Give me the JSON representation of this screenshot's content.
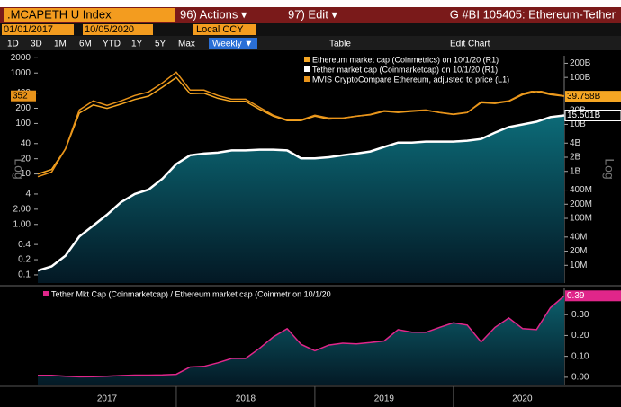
{
  "header": {
    "ticker": ".MCAPETH U Index",
    "actions": "96) Actions ▾",
    "edit": "97) Edit ▾",
    "title": "G #BI 105405: Ethereum-Tether"
  },
  "range": {
    "start": "01/01/2017",
    "end": "10/05/2020",
    "currency": "Local CCY"
  },
  "toolbar": {
    "periods": [
      "1D",
      "3D",
      "1M",
      "6M",
      "YTD",
      "1Y",
      "5Y",
      "Max"
    ],
    "frequency": "Weekly ▼",
    "table": "Table",
    "edit_chart": "Edit Chart"
  },
  "chart_data": [
    {
      "type": "line",
      "ylabel": "Log",
      "y2label": "Log",
      "log": true,
      "y2log": true,
      "x": [
        2017.0,
        2017.1,
        2017.2,
        2017.3,
        2017.4,
        2017.5,
        2017.6,
        2017.7,
        2017.8,
        2017.9,
        2018.0,
        2018.1,
        2018.2,
        2018.3,
        2018.4,
        2018.5,
        2018.6,
        2018.7,
        2018.8,
        2018.9,
        2019.0,
        2019.1,
        2019.2,
        2019.3,
        2019.4,
        2019.5,
        2019.6,
        2019.7,
        2019.8,
        2019.9,
        2020.0,
        2020.1,
        2020.2,
        2020.3,
        2020.4,
        2020.5,
        2020.6,
        2020.7,
        2020.8
      ],
      "xlim": [
        2017,
        2020.8
      ],
      "ylim": [
        0.069,
        2200
      ],
      "yticks": [
        2000,
        1000,
        400,
        200,
        100,
        40,
        20,
        10,
        4,
        {
          "value": 2,
          "label": "2.00"
        },
        {
          "value": 1,
          "label": "1.00"
        },
        0.4,
        0.2,
        0.1
      ],
      "y2lim": [
        4200000,
        290000000000
      ],
      "y2ticks": [
        {
          "value": 200000000000,
          "label": "200B"
        },
        {
          "value": 100000000000,
          "label": "100B"
        },
        {
          "value": 20000000000,
          "label": "20B"
        },
        {
          "value": 10000000000,
          "label": "10B"
        },
        {
          "value": 4000000000,
          "label": "4B"
        },
        {
          "value": 2000000000,
          "label": "2B"
        },
        {
          "value": 1000000000,
          "label": "1B"
        },
        {
          "value": 400000000,
          "label": "400M"
        },
        {
          "value": 200000000,
          "label": "200M"
        },
        {
          "value": 100000000,
          "label": "100M"
        },
        {
          "value": 40000000,
          "label": "40M"
        },
        {
          "value": 20000000,
          "label": "20M"
        },
        {
          "value": 10000000,
          "label": "10M"
        }
      ],
      "legend": "upper right",
      "series": [
        {
          "name": "Ethereum market cap (Coinmetrics) on 10/1/20 (R1)",
          "color": "#f5a623",
          "axis": "y2",
          "values": [
            880000000,
            1100000000,
            3000000000,
            17500000000,
            26000000000,
            22000000000,
            27000000000,
            34000000000,
            40000000000,
            62000000000,
            100000000000,
            45000000000,
            46000000000,
            36000000000,
            31000000000,
            31000000000,
            21000000000,
            15000000000,
            12000000000,
            12000000000,
            15000000000,
            13000000000,
            13500000000,
            15000000000,
            16000000000,
            19000000000,
            18000000000,
            19000000000,
            20000000000,
            18000000000,
            16500000000,
            18000000000,
            29000000000,
            28000000000,
            31000000000,
            43000000000,
            50000000000,
            43000000000,
            39758000000
          ],
          "value_labels": [
            null,
            null,
            null,
            null,
            null,
            null,
            null,
            null,
            null,
            null,
            null,
            null,
            null,
            null,
            null,
            null,
            null,
            null,
            null,
            null,
            null,
            null,
            null,
            null,
            null,
            null,
            null,
            null,
            null,
            null,
            null,
            null,
            null,
            null,
            null,
            null,
            null,
            null,
            "39.758B"
          ]
        },
        {
          "name": "Tether market cap (Coinmarketcap) on 10/1/20 (R1)",
          "color": "#ffffff",
          "axis": "y2",
          "area": true,
          "values": [
            7700000,
            9500000,
            16000000,
            41000000,
            70000000,
            120000000,
            220000000,
            330000000,
            410000000,
            700000000,
            1430000000,
            2200000000,
            2400000000,
            2500000000,
            2800000000,
            2800000000,
            2900000000,
            2900000000,
            2800000000,
            1900000000,
            1900000000,
            2000000000,
            2200000000,
            2400000000,
            2650000000,
            3300000000,
            4100000000,
            4100000000,
            4300000000,
            4300000000,
            4300000000,
            4500000000,
            4900000000,
            6700000000,
            8800000000,
            10000000000,
            11400000000,
            14300000000,
            15501000000
          ],
          "value_labels": [
            null,
            null,
            null,
            null,
            null,
            null,
            null,
            null,
            null,
            null,
            null,
            null,
            null,
            null,
            null,
            null,
            null,
            null,
            null,
            null,
            null,
            null,
            null,
            null,
            null,
            null,
            null,
            null,
            null,
            null,
            null,
            null,
            null,
            null,
            null,
            null,
            null,
            null,
            "15.501B"
          ]
        },
        {
          "name": "MVIS CryptoCompare Ethereum, adjusted to price (L1)",
          "color": "#e8931a",
          "axis": "y",
          "values": [
            8.8,
            10.9,
            31.6,
            185,
            280,
            228,
            280,
            358,
            422,
            637,
            1040,
            458,
            458,
            358,
            303,
            303,
            209,
            145,
            118,
            118,
            145,
            128,
            128,
            139,
            151,
            178,
            171,
            178,
            185,
            164,
            151,
            164,
            268,
            258,
            280,
            388,
            458,
            388,
            352
          ],
          "value_labels": [
            null,
            null,
            null,
            null,
            null,
            null,
            null,
            null,
            null,
            null,
            null,
            null,
            null,
            null,
            null,
            null,
            null,
            null,
            null,
            null,
            null,
            null,
            null,
            null,
            null,
            null,
            null,
            null,
            null,
            null,
            null,
            null,
            null,
            null,
            null,
            null,
            null,
            null,
            "352"
          ]
        }
      ]
    },
    {
      "type": "area",
      "yaxis_side": "right",
      "legend": "upper left",
      "x": [
        2017.0,
        2017.1,
        2017.2,
        2017.3,
        2017.4,
        2017.5,
        2017.6,
        2017.7,
        2017.8,
        2017.9,
        2018.0,
        2018.1,
        2018.2,
        2018.3,
        2018.4,
        2018.5,
        2018.6,
        2018.7,
        2018.8,
        2018.9,
        2019.0,
        2019.1,
        2019.2,
        2019.3,
        2019.4,
        2019.5,
        2019.6,
        2019.7,
        2019.8,
        2019.9,
        2020.0,
        2020.1,
        2020.2,
        2020.3,
        2020.4,
        2020.5,
        2020.6,
        2020.7,
        2020.8
      ],
      "xlim": [
        2017,
        2020.8
      ],
      "xticks": [
        2017,
        2018,
        2019,
        2020
      ],
      "ylim": [
        -0.035,
        0.43
      ],
      "yticks": [
        {
          "value": 0,
          "label": "0.00"
        },
        {
          "value": 0.1,
          "label": "0.10"
        },
        {
          "value": 0.2,
          "label": "0.20"
        },
        {
          "value": 0.3,
          "label": "0.30"
        }
      ],
      "series": [
        {
          "name": "Tether Mkt Cap (Coinmarketcap) / Ethereum market cap (Coinmetr on 10/1/20",
          "color": "#e0268a",
          "values": [
            0.009,
            0.009,
            0.005,
            0.002,
            0.003,
            0.005,
            0.008,
            0.01,
            0.01,
            0.011,
            0.014,
            0.049,
            0.052,
            0.069,
            0.09,
            0.09,
            0.138,
            0.193,
            0.233,
            0.158,
            0.127,
            0.154,
            0.163,
            0.16,
            0.166,
            0.174,
            0.228,
            0.216,
            0.215,
            0.239,
            0.261,
            0.25,
            0.169,
            0.239,
            0.284,
            0.233,
            0.228,
            0.333,
            0.39
          ],
          "value_labels": [
            null,
            null,
            null,
            null,
            null,
            null,
            null,
            null,
            null,
            null,
            null,
            null,
            null,
            null,
            null,
            null,
            null,
            null,
            null,
            null,
            null,
            null,
            null,
            null,
            null,
            null,
            null,
            null,
            null,
            null,
            null,
            null,
            null,
            null,
            null,
            null,
            null,
            null,
            "0.39"
          ]
        }
      ]
    }
  ]
}
